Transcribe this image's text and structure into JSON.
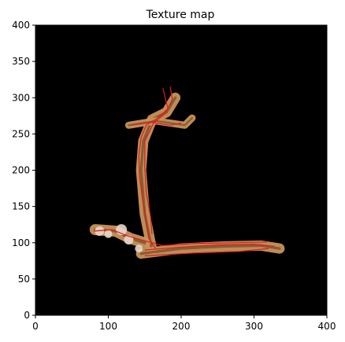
{
  "chart_data": {
    "type": "image",
    "title": "Texture map",
    "xlabel": "",
    "ylabel": "",
    "xlim": [
      0,
      400
    ],
    "ylim": [
      0,
      400
    ],
    "x_ticks": [
      "0",
      "100",
      "200",
      "300",
      "400"
    ],
    "y_ticks": [
      "0",
      "50",
      "100",
      "150",
      "200",
      "250",
      "300",
      "350",
      "400"
    ],
    "background_color": "#000000",
    "texture_color": "#c8955a",
    "texture_dark_color": "#6e4a2a",
    "trace_color": "#e31a1c",
    "texture_bands": [
      {
        "name": "vertical-band",
        "points": [
          [
            160,
            90
          ],
          [
            150,
            140
          ],
          [
            145,
            200
          ],
          [
            148,
            240
          ],
          [
            160,
            270
          ],
          [
            180,
            280
          ],
          [
            192,
            300
          ]
        ]
      },
      {
        "name": "horizontal-band",
        "points": [
          [
            145,
            85
          ],
          [
            200,
            92
          ],
          [
            260,
            95
          ],
          [
            310,
            96
          ],
          [
            335,
            92
          ]
        ]
      },
      {
        "name": "top-branch",
        "points": [
          [
            128,
            262
          ],
          [
            165,
            268
          ],
          [
            205,
            262
          ],
          [
            215,
            272
          ]
        ]
      },
      {
        "name": "left-blob",
        "points": [
          [
            82,
            118
          ],
          [
            110,
            116
          ],
          [
            130,
            106
          ],
          [
            150,
            100
          ]
        ]
      }
    ],
    "traces": [
      [
        [
          175,
          313
        ],
        [
          178,
          300
        ],
        [
          182,
          285
        ],
        [
          168,
          272
        ],
        [
          152,
          262
        ],
        [
          145,
          245
        ],
        [
          142,
          220
        ],
        [
          143,
          190
        ],
        [
          147,
          160
        ],
        [
          152,
          130
        ],
        [
          156,
          105
        ],
        [
          165,
          92
        ]
      ],
      [
        [
          150,
          90
        ],
        [
          200,
          94
        ],
        [
          250,
          97
        ],
        [
          300,
          98
        ],
        [
          328,
          95
        ]
      ],
      [
        [
          130,
          262
        ],
        [
          160,
          266
        ],
        [
          185,
          262
        ],
        [
          200,
          265
        ]
      ],
      [
        [
          80,
          116
        ],
        [
          105,
          118
        ],
        [
          125,
          110
        ],
        [
          145,
          104
        ],
        [
          175,
          96
        ],
        [
          220,
          99
        ],
        [
          270,
          100
        ],
        [
          318,
          101
        ]
      ],
      [
        [
          150,
          82
        ],
        [
          220,
          86
        ],
        [
          280,
          88
        ],
        [
          320,
          92
        ]
      ],
      [
        [
          185,
          315
        ],
        [
          188,
          298
        ],
        [
          178,
          278
        ],
        [
          162,
          265
        ],
        [
          150,
          240
        ],
        [
          150,
          205
        ],
        [
          152,
          170
        ],
        [
          158,
          135
        ],
        [
          160,
          112
        ]
      ]
    ]
  }
}
